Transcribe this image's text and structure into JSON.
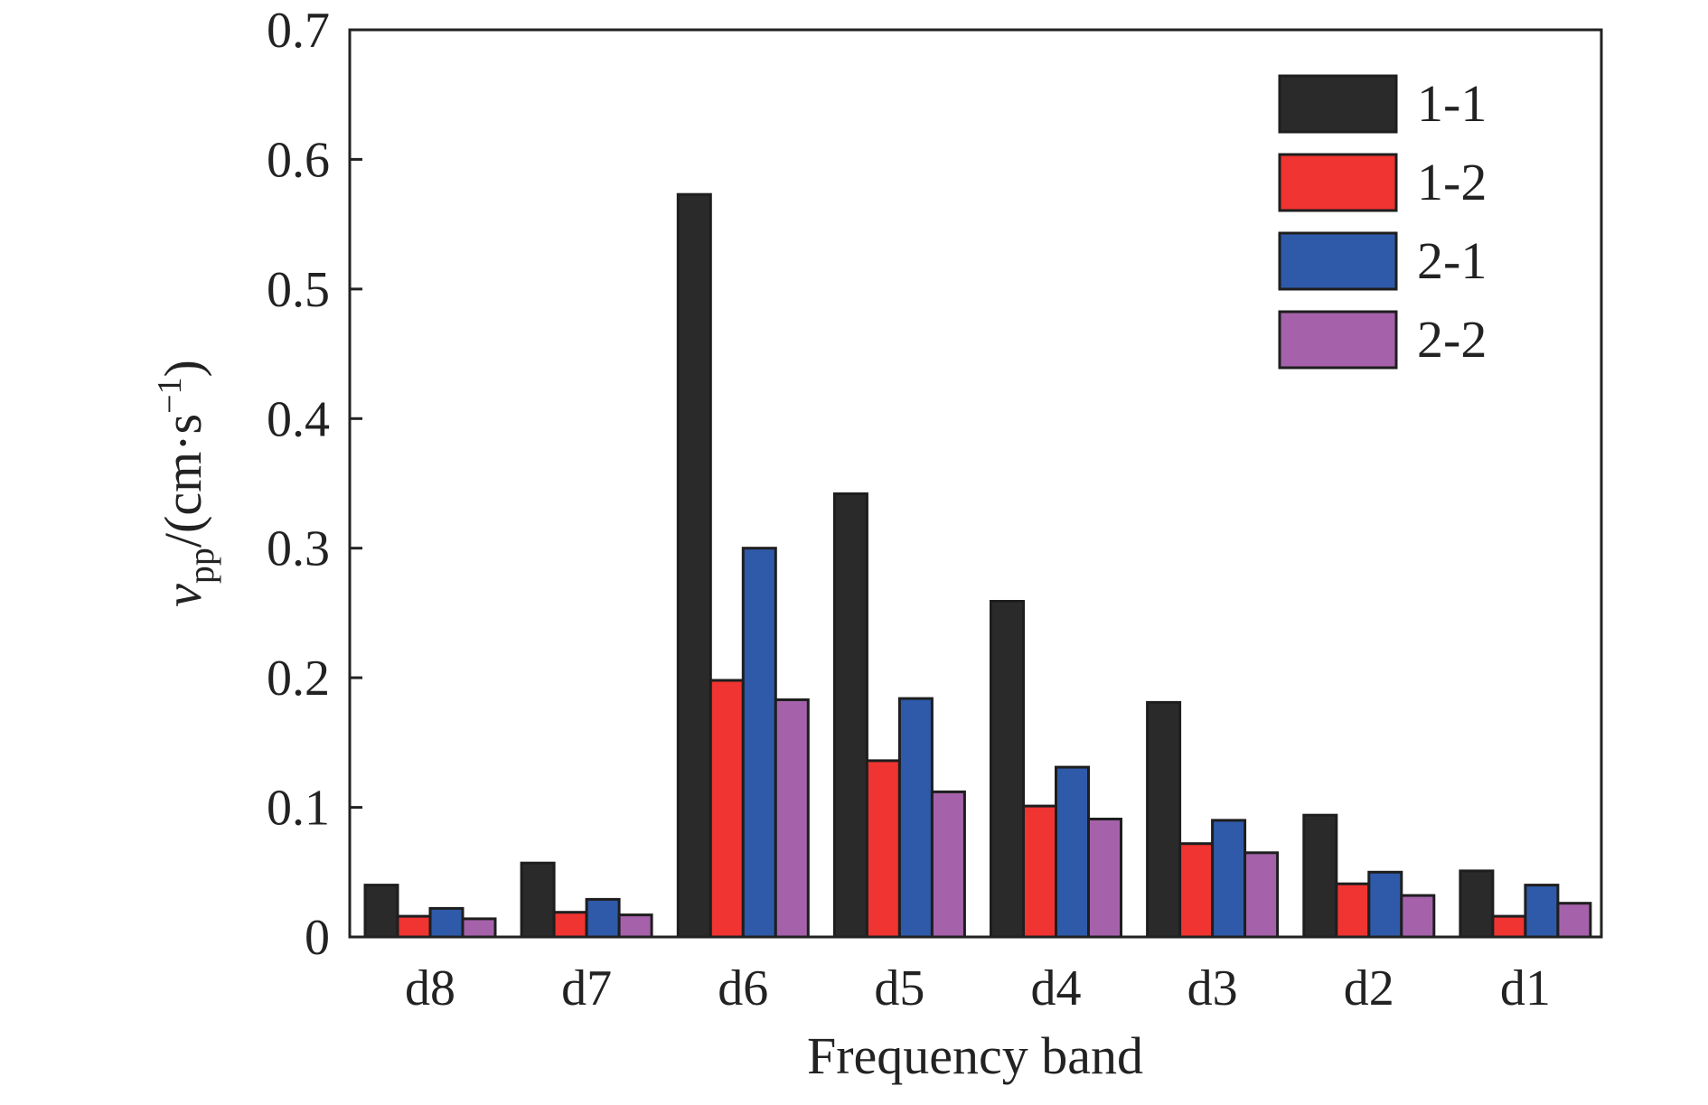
{
  "chart_data": {
    "type": "bar",
    "xlabel": "Frequency band",
    "ylabel": {
      "base": "v",
      "subscript": "pp",
      "unit_prefix": "/(cm·s",
      "unit_superscript": "−1",
      "unit_suffix": ")"
    },
    "categories": [
      "d8",
      "d7",
      "d6",
      "d5",
      "d4",
      "d3",
      "d2",
      "d1"
    ],
    "ylim": [
      0,
      0.7
    ],
    "yticks": [
      0,
      0.1,
      0.2,
      0.3,
      0.4,
      0.5,
      0.6,
      0.7
    ],
    "ytick_labels": [
      "0",
      "0.1",
      "0.2",
      "0.3",
      "0.4",
      "0.5",
      "0.6",
      "0.7"
    ],
    "grid": false,
    "legend_position": "top-right",
    "series": [
      {
        "name": "1-1",
        "color": "#2b2a2b",
        "values": [
          0.04,
          0.057,
          0.573,
          0.342,
          0.259,
          0.181,
          0.094,
          0.051
        ]
      },
      {
        "name": "1-2",
        "color": "#ef3431",
        "values": [
          0.016,
          0.019,
          0.198,
          0.136,
          0.101,
          0.072,
          0.041,
          0.016
        ]
      },
      {
        "name": "2-1",
        "color": "#2f5aa9",
        "values": [
          0.022,
          0.029,
          0.3,
          0.184,
          0.131,
          0.09,
          0.05,
          0.04
        ]
      },
      {
        "name": "2-2",
        "color": "#a562ab",
        "values": [
          0.014,
          0.017,
          0.183,
          0.112,
          0.091,
          0.065,
          0.032,
          0.026
        ]
      }
    ]
  }
}
